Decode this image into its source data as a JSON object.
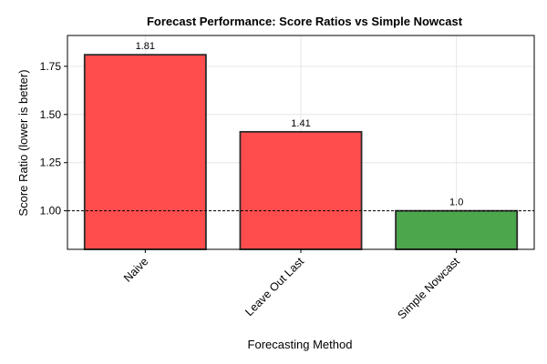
{
  "chart_data": {
    "type": "bar",
    "title": "Forecast Performance: Score Ratios vs Simple Nowcast",
    "xlabel": "Forecasting Method",
    "ylabel": "Score Ratio (lower is better)",
    "categories": [
      "Naive",
      "Leave Out Last",
      "Simple Nowcast"
    ],
    "values": [
      1.81,
      1.41,
      1.0
    ],
    "data_labels": [
      "1.81",
      "1.41",
      "1.0"
    ],
    "bar_colors": [
      "#ff4d4d",
      "#ff4d4d",
      "#4ca64c"
    ],
    "bar_edge_color": "#2b2b2b",
    "ylim": [
      0.8,
      1.91
    ],
    "yticks": [
      1.0,
      1.25,
      1.5,
      1.75
    ],
    "ytick_labels": [
      "1.00",
      "1.25",
      "1.50",
      "1.75"
    ],
    "reference_line": {
      "value": 1.0,
      "style": "dashed",
      "color": "#000000"
    },
    "grid": true,
    "legend": "none",
    "category_label_rotation": "45 degrees"
  }
}
